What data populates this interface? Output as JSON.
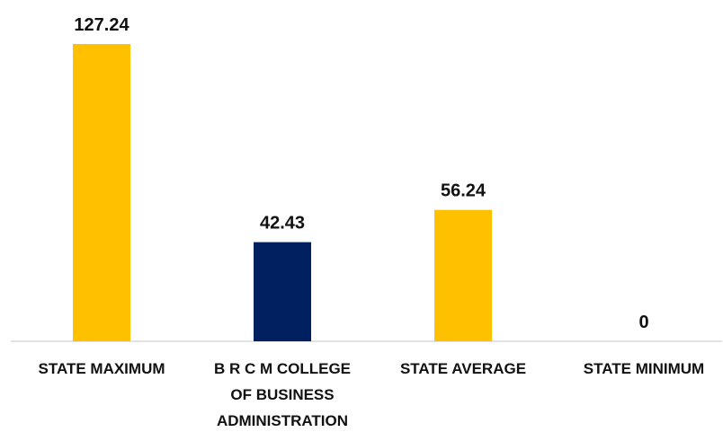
{
  "chart_data": {
    "type": "bar",
    "categories": [
      "STATE MAXIMUM",
      "B R C M COLLEGE OF BUSINESS ADMINISTRATION",
      "STATE AVERAGE",
      "STATE MINIMUM"
    ],
    "category_lines": [
      [
        "STATE MAXIMUM"
      ],
      [
        "B R C M COLLEGE",
        "OF BUSINESS",
        "ADMINISTRATION"
      ],
      [
        "STATE AVERAGE"
      ],
      [
        "STATE MINIMUM"
      ]
    ],
    "values": [
      127.24,
      42.43,
      56.24,
      0
    ],
    "value_labels": [
      "127.24",
      "42.43",
      "56.24",
      "0"
    ],
    "bar_colors": [
      "#FFC000",
      "#002060",
      "#FFC000",
      "#FFC000"
    ],
    "title": "",
    "xlabel": "",
    "ylabel": "",
    "ylim": [
      0,
      127.24
    ],
    "grid": false,
    "legend": "none"
  }
}
